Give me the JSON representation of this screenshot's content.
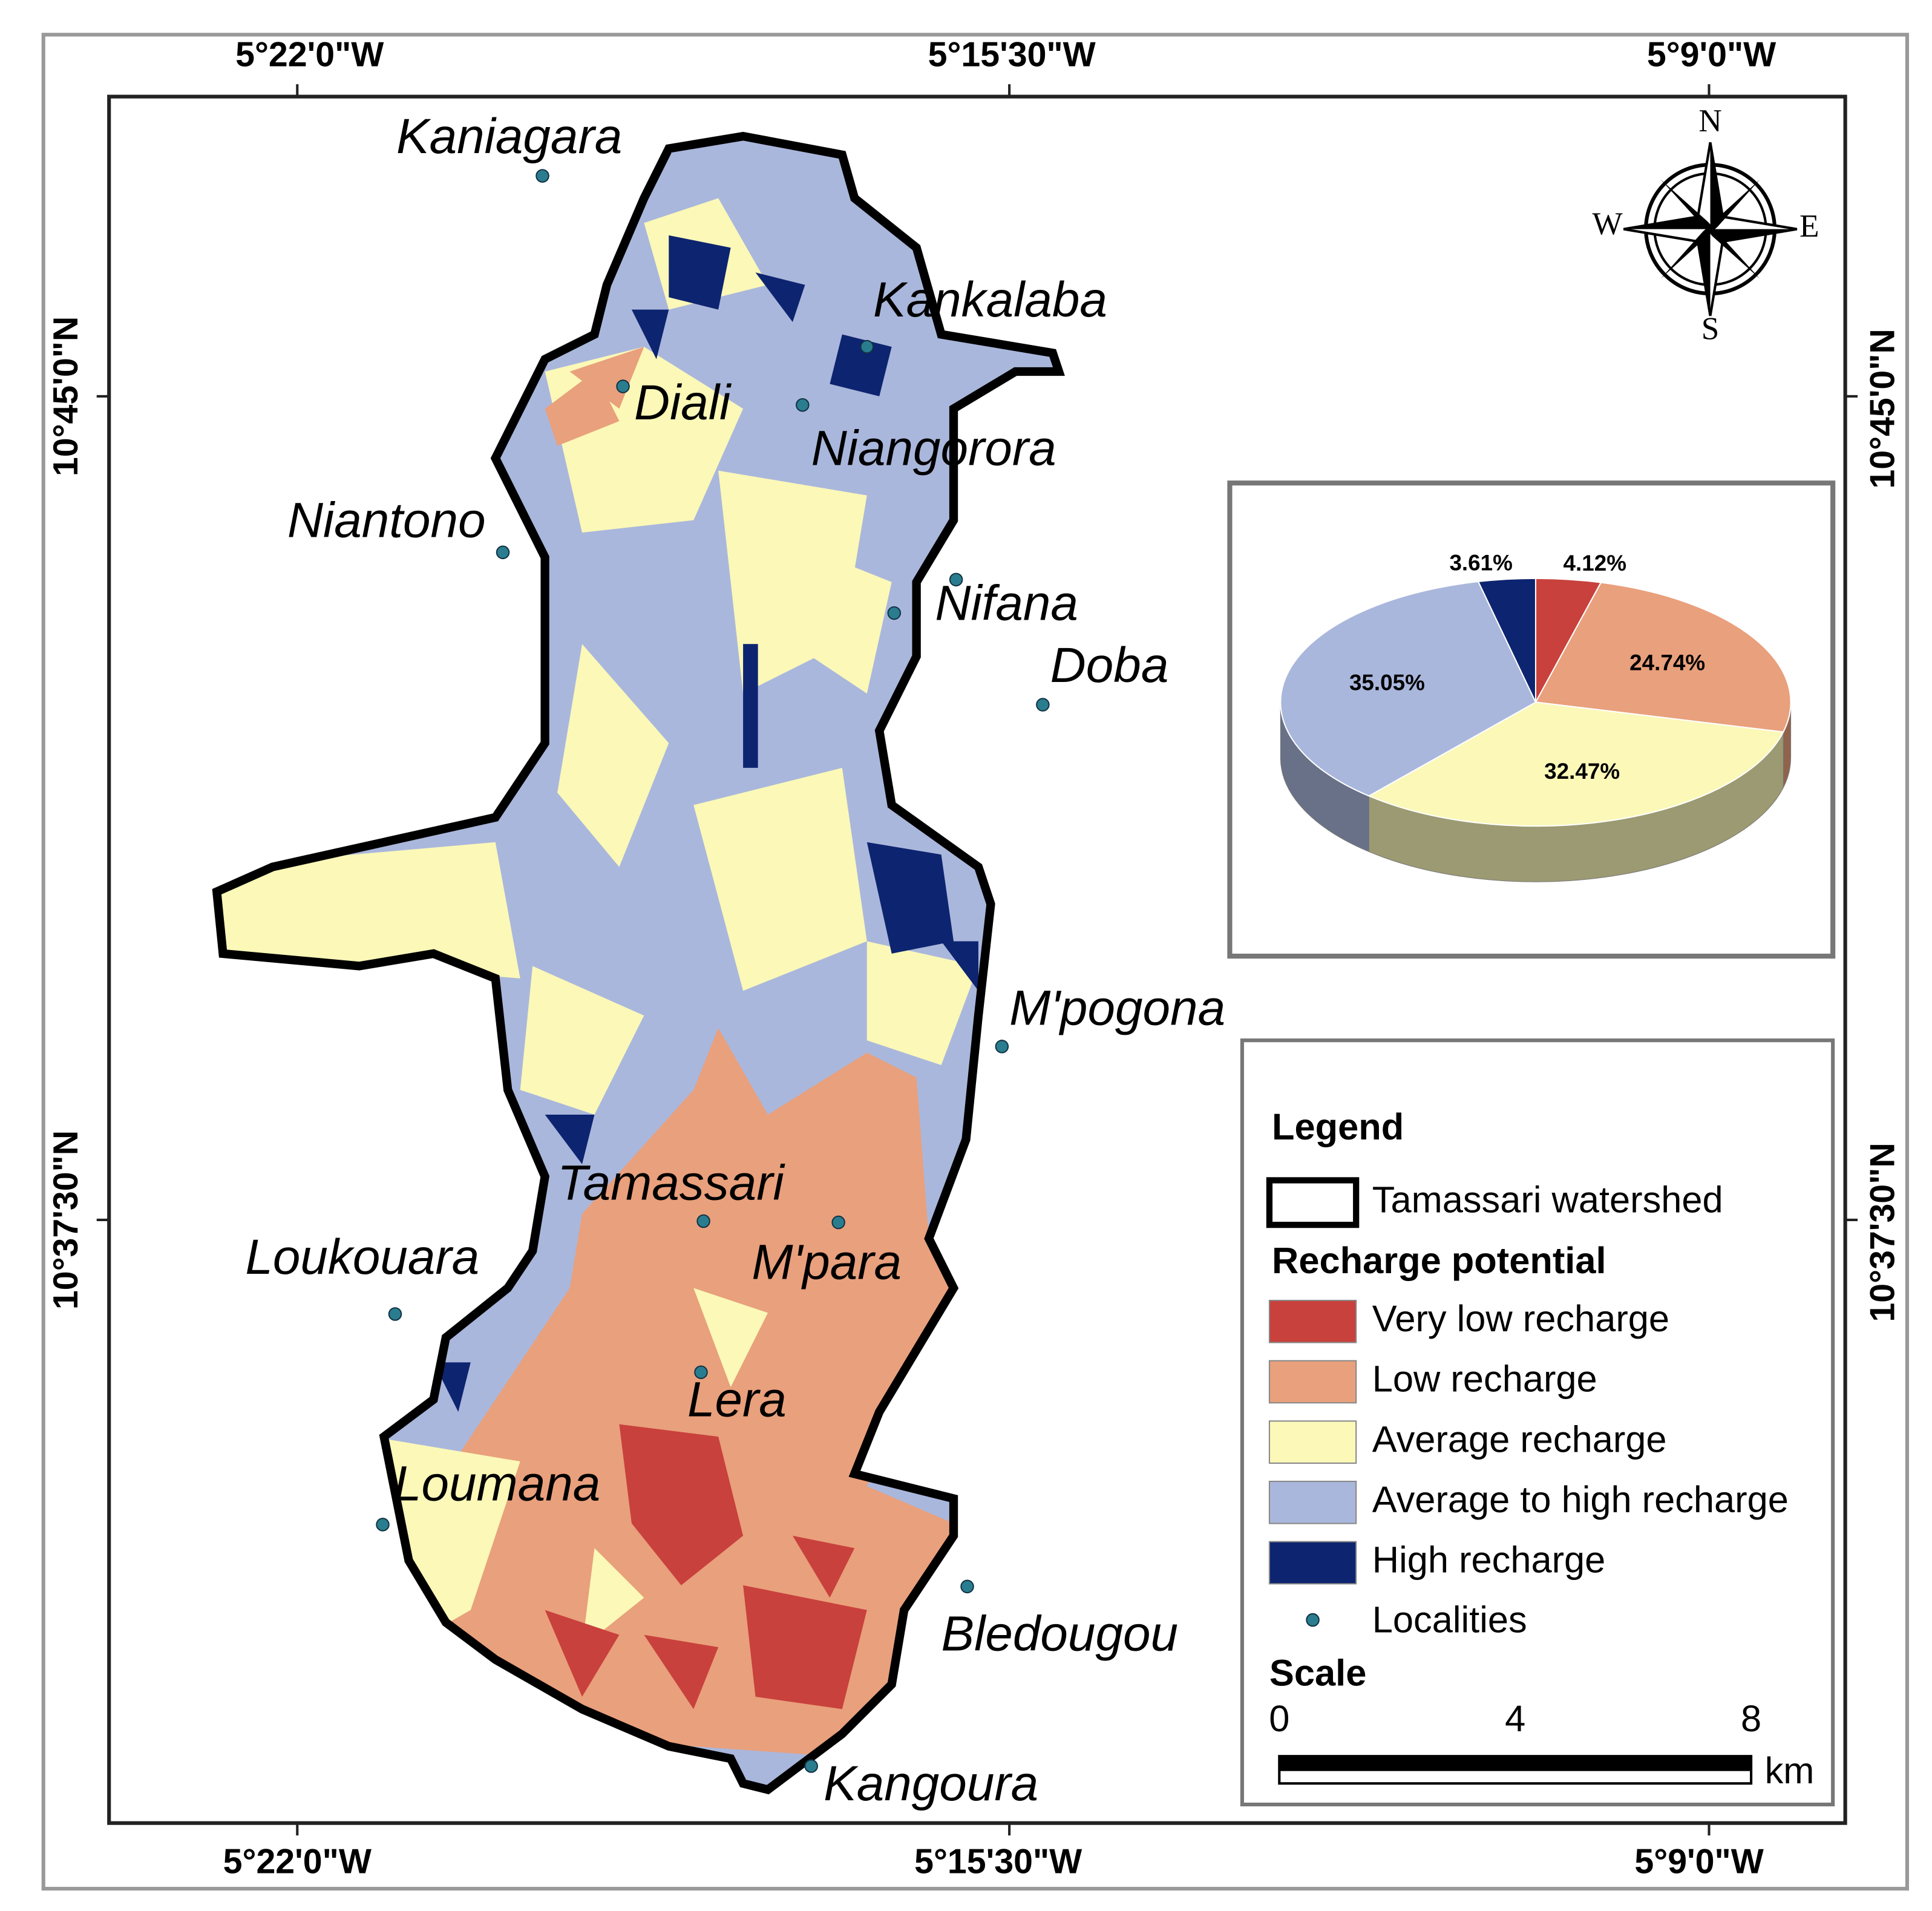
{
  "map": {
    "lon_labels": [
      "5°22'0\"W",
      "5°15'30\"W",
      "5°9'0\"W"
    ],
    "lat_labels": [
      "10°45'0\"N",
      "10°37'30\"N"
    ],
    "compass": {
      "n": "N",
      "e": "E",
      "s": "S",
      "w": "W"
    },
    "localities": [
      "Kaniagara",
      "Kankalaba",
      "Diali",
      "Niangorora",
      "Niantono",
      "Nifana",
      "Doba",
      "M'pogona",
      "Tamassari",
      "M'para",
      "Loukouara",
      "Lera",
      "Loumana",
      "Bledougou",
      "Kangoura"
    ]
  },
  "legend": {
    "title": "Legend",
    "watershed": "Tamassari watershed",
    "group": "Recharge potential",
    "items": [
      {
        "name": "Very low recharge",
        "color": "#c8413c"
      },
      {
        "name": "Low recharge",
        "color": "#e9a07c"
      },
      {
        "name": "Average recharge",
        "color": "#fbf8b8"
      },
      {
        "name": "Average to high recharge",
        "color": "#aab7dc"
      },
      {
        "name": "High recharge",
        "color": "#0d2470"
      }
    ],
    "localities": "Localities",
    "scale_title": "Scale",
    "scale_ticks": [
      0,
      4,
      8
    ],
    "scale_unit": "km"
  },
  "chart_data": {
    "type": "pie",
    "values": [
      4.12,
      24.74,
      32.47,
      35.05,
      3.61
    ],
    "value_labels": [
      "4.12%",
      "24.74%",
      "32.47%",
      "35.05%",
      "3.61%"
    ],
    "colors": [
      "#c8413c",
      "#e9a07c",
      "#fbf8b8",
      "#aab7dc",
      "#0d2470"
    ]
  }
}
